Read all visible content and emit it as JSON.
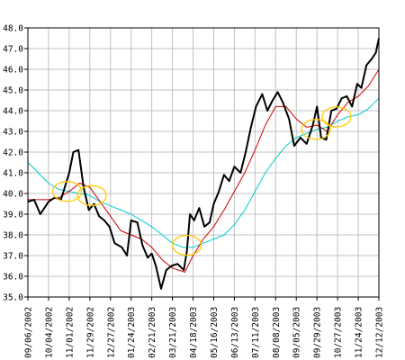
{
  "chart_data": {
    "type": "line",
    "title": "",
    "xlabel": "",
    "ylabel": "",
    "ylim": [
      35.0,
      48.0
    ],
    "y_ticks": [
      "35.0",
      "36.0",
      "37.0",
      "38.0",
      "39.0",
      "40.0",
      "41.0",
      "42.0",
      "43.0",
      "44.0",
      "45.0",
      "46.0",
      "47.0",
      "48.0"
    ],
    "x_tick_labels": [
      "09/06/2002",
      "10/04/2002",
      "11/01/2002",
      "11/29/2002",
      "12/27/2002",
      "01/24/2003",
      "02/21/2003",
      "03/21/2003",
      "04/18/2003",
      "05/16/2003",
      "06/13/2003",
      "07/11/2003",
      "08/08/2003",
      "09/05/2003",
      "09/29/2003",
      "10/27/2003",
      "11/24/2003",
      "12/12/2003"
    ],
    "grid": true,
    "legend": "none",
    "colors": {
      "price": "#000000",
      "short_ma": "#cc0000",
      "long_ma": "#00cccc",
      "crossover_marker": "#ffcc00",
      "grid": "#c0c0c0"
    },
    "series": [
      {
        "key": "price",
        "points": [
          [
            0.0,
            39.6
          ],
          [
            0.3,
            39.7
          ],
          [
            0.6,
            39.0
          ],
          [
            1.0,
            39.6
          ],
          [
            1.3,
            39.8
          ],
          [
            1.6,
            39.7
          ],
          [
            1.85,
            40.5
          ],
          [
            2.0,
            41.0
          ],
          [
            2.2,
            42.0
          ],
          [
            2.45,
            42.1
          ],
          [
            2.7,
            40.3
          ],
          [
            2.95,
            39.2
          ],
          [
            3.2,
            39.5
          ],
          [
            3.45,
            38.9
          ],
          [
            3.7,
            38.7
          ],
          [
            3.95,
            38.4
          ],
          [
            4.2,
            37.6
          ],
          [
            4.55,
            37.4
          ],
          [
            4.8,
            37.0
          ],
          [
            5.0,
            38.7
          ],
          [
            5.3,
            38.6
          ],
          [
            5.55,
            37.5
          ],
          [
            5.8,
            36.9
          ],
          [
            6.0,
            37.1
          ],
          [
            6.2,
            36.5
          ],
          [
            6.45,
            35.4
          ],
          [
            6.7,
            36.3
          ],
          [
            6.95,
            36.5
          ],
          [
            7.25,
            36.6
          ],
          [
            7.55,
            36.3
          ],
          [
            7.7,
            37.2
          ],
          [
            7.85,
            39.0
          ],
          [
            8.05,
            38.7
          ],
          [
            8.3,
            39.3
          ],
          [
            8.55,
            38.4
          ],
          [
            8.8,
            38.6
          ],
          [
            9.0,
            39.5
          ],
          [
            9.25,
            40.1
          ],
          [
            9.5,
            40.9
          ],
          [
            9.75,
            40.6
          ],
          [
            10.0,
            41.3
          ],
          [
            10.3,
            41.0
          ],
          [
            10.55,
            42.0
          ],
          [
            10.8,
            43.2
          ],
          [
            11.05,
            44.2
          ],
          [
            11.35,
            44.8
          ],
          [
            11.6,
            44.0
          ],
          [
            11.85,
            44.5
          ],
          [
            12.1,
            44.9
          ],
          [
            12.35,
            44.4
          ],
          [
            12.65,
            43.6
          ],
          [
            12.9,
            42.3
          ],
          [
            13.2,
            42.7
          ],
          [
            13.5,
            42.4
          ],
          [
            13.8,
            43.3
          ],
          [
            14.0,
            44.2
          ],
          [
            14.2,
            42.7
          ],
          [
            14.45,
            42.6
          ],
          [
            14.7,
            44.0
          ],
          [
            14.95,
            44.1
          ],
          [
            15.2,
            44.6
          ],
          [
            15.45,
            44.7
          ],
          [
            15.7,
            44.2
          ],
          [
            15.95,
            45.3
          ],
          [
            16.15,
            45.1
          ],
          [
            16.4,
            46.2
          ],
          [
            16.65,
            46.5
          ],
          [
            16.85,
            46.8
          ],
          [
            17.0,
            47.5
          ]
        ]
      },
      {
        "key": "short_ma",
        "points": [
          [
            0.0,
            39.7
          ],
          [
            0.5,
            39.7
          ],
          [
            1.0,
            39.7
          ],
          [
            1.5,
            39.8
          ],
          [
            2.0,
            40.1
          ],
          [
            2.5,
            40.5
          ],
          [
            3.0,
            40.3
          ],
          [
            3.5,
            39.6
          ],
          [
            4.0,
            38.9
          ],
          [
            4.5,
            38.2
          ],
          [
            5.0,
            38.0
          ],
          [
            5.5,
            37.8
          ],
          [
            6.0,
            37.4
          ],
          [
            6.5,
            36.8
          ],
          [
            7.0,
            36.4
          ],
          [
            7.6,
            36.2
          ],
          [
            8.0,
            37.0
          ],
          [
            8.5,
            37.8
          ],
          [
            9.0,
            38.4
          ],
          [
            9.5,
            39.2
          ],
          [
            10.0,
            40.1
          ],
          [
            10.5,
            41.0
          ],
          [
            11.0,
            42.1
          ],
          [
            11.5,
            43.3
          ],
          [
            12.0,
            44.2
          ],
          [
            12.5,
            44.2
          ],
          [
            13.0,
            43.6
          ],
          [
            13.5,
            43.2
          ],
          [
            14.0,
            43.3
          ],
          [
            14.5,
            43.0
          ],
          [
            15.0,
            43.8
          ],
          [
            15.5,
            44.4
          ],
          [
            16.0,
            44.7
          ],
          [
            16.5,
            45.2
          ],
          [
            17.0,
            46.0
          ]
        ]
      },
      {
        "key": "long_ma",
        "points": [
          [
            0.0,
            41.5
          ],
          [
            0.5,
            41.0
          ],
          [
            1.0,
            40.5
          ],
          [
            1.5,
            40.2
          ],
          [
            2.0,
            40.1
          ],
          [
            2.5,
            40.0
          ],
          [
            3.0,
            39.9
          ],
          [
            3.5,
            39.6
          ],
          [
            4.0,
            39.4
          ],
          [
            4.5,
            39.2
          ],
          [
            5.0,
            39.0
          ],
          [
            5.5,
            38.7
          ],
          [
            6.0,
            38.4
          ],
          [
            6.5,
            38.0
          ],
          [
            7.0,
            37.6
          ],
          [
            7.5,
            37.4
          ],
          [
            8.0,
            37.4
          ],
          [
            8.5,
            37.6
          ],
          [
            9.0,
            37.8
          ],
          [
            9.5,
            38.0
          ],
          [
            10.0,
            38.5
          ],
          [
            10.5,
            39.2
          ],
          [
            11.0,
            40.1
          ],
          [
            11.5,
            41.0
          ],
          [
            12.0,
            41.7
          ],
          [
            12.5,
            42.3
          ],
          [
            13.0,
            42.7
          ],
          [
            13.5,
            42.9
          ],
          [
            14.0,
            43.1
          ],
          [
            14.5,
            43.2
          ],
          [
            15.0,
            43.5
          ],
          [
            15.5,
            43.7
          ],
          [
            16.0,
            43.8
          ],
          [
            16.5,
            44.1
          ],
          [
            17.0,
            44.6
          ]
        ]
      }
    ],
    "crossover_markers": [
      [
        1.9,
        40.1
      ],
      [
        3.1,
        39.9
      ],
      [
        7.7,
        37.5
      ],
      [
        13.95,
        43.1
      ],
      [
        14.95,
        43.7
      ]
    ]
  }
}
